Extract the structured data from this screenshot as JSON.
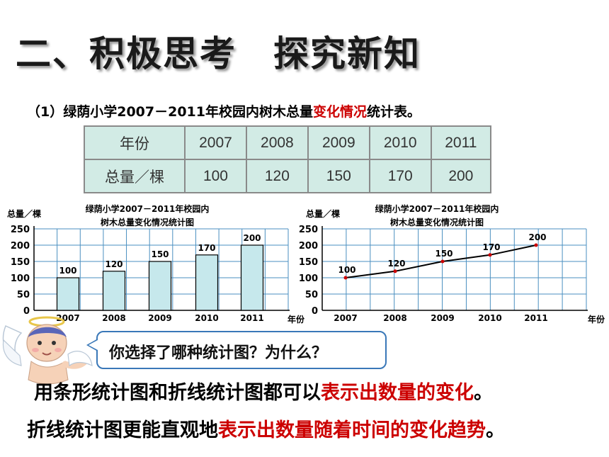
{
  "title": "二、积极思考　探究新知",
  "subtitle": {
    "prefix": "（1）绿荫小学2007－2011年校园内树木总量",
    "highlight": "变化情况",
    "suffix": "统计表。"
  },
  "table": {
    "header_label": "年份",
    "row_label": "总量／棵",
    "years": [
      "2007",
      "2008",
      "2009",
      "2010",
      "2011"
    ],
    "values": [
      "100",
      "120",
      "150",
      "170",
      "200"
    ]
  },
  "chart_data": [
    {
      "type": "bar",
      "title": "绿荫小学2007－2011年校园内\n树木总量变化情况统计图",
      "title_line1": "绿荫小学2007－2011年校园内",
      "title_line2": "树木总量变化情况统计图",
      "ylabel": "总量／棵",
      "xlabel": "年份",
      "categories": [
        "2007",
        "2008",
        "2009",
        "2010",
        "2011"
      ],
      "values": [
        100,
        120,
        150,
        170,
        200
      ],
      "ylim": [
        0,
        250
      ],
      "yticks": [
        "0",
        "50",
        "100",
        "150",
        "200",
        "250"
      ],
      "grid": true,
      "bar_color": "#c6e8ec"
    },
    {
      "type": "line",
      "title": "绿荫小学2007－2011年校园内\n树木总量变化情况统计图",
      "title_line1": "绿荫小学2007－2011年校园内",
      "title_line2": "树木总量变化情况统计图",
      "ylabel": "总量／棵",
      "xlabel": "年份",
      "categories": [
        "2007",
        "2008",
        "2009",
        "2010",
        "2011"
      ],
      "values": [
        100,
        120,
        150,
        170,
        200
      ],
      "ylim": [
        0,
        250
      ],
      "yticks": [
        "0",
        "50",
        "100",
        "150",
        "200",
        "250"
      ],
      "grid": true,
      "point_color": "#cc0000"
    }
  ],
  "bubble": {
    "text": "你选择了哪种统计图？为什么？"
  },
  "line1": {
    "prefix": "用条形统计图和折线统计图都可以",
    "highlight": "表示出数量的变化",
    "suffix": "。"
  },
  "line2": {
    "prefix": "折线统计图更能直观地",
    "highlight": "表示出数量随着时间的变化趋势",
    "suffix": "。"
  },
  "colors": {
    "accent_red": "#cc0000",
    "table_bg": "#d2ebe5",
    "grid": "#4a8fc0",
    "bubble_border": "#3a78b8"
  }
}
